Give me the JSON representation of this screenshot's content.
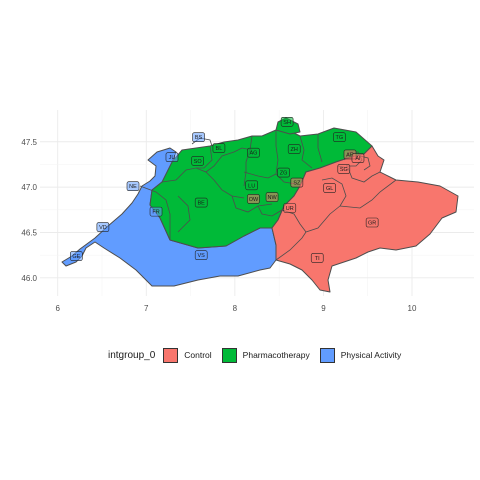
{
  "chart_data": {
    "type": "choropleth-map",
    "title": "",
    "xlabel": "",
    "ylabel": "",
    "xlim": [
      5.8,
      10.7
    ],
    "ylim": [
      45.8,
      47.85
    ],
    "x_ticks": [
      6,
      7,
      8,
      9,
      10
    ],
    "y_ticks": [
      46.0,
      46.5,
      47.0,
      47.5
    ],
    "x_tick_labels": [
      "6",
      "7",
      "8",
      "9",
      "10"
    ],
    "y_tick_labels": [
      "46.0",
      "46.5",
      "47.0",
      "47.5"
    ],
    "grid": true,
    "legend": {
      "title": "intgroup_0",
      "placement": "bottom",
      "items": [
        {
          "label": "Control",
          "color": "#F8766D"
        },
        {
          "label": "Pharmacotherapy",
          "color": "#00BA38"
        },
        {
          "label": "Physical Activity",
          "color": "#619CFF"
        }
      ]
    },
    "regions": [
      {
        "code": "GE",
        "group": "Physical Activity",
        "label_lon": 6.21,
        "label_lat": 46.24
      },
      {
        "code": "VD",
        "group": "Physical Activity",
        "label_lon": 6.51,
        "label_lat": 46.56
      },
      {
        "code": "VS",
        "group": "Physical Activity",
        "label_lon": 7.62,
        "label_lat": 46.25
      },
      {
        "code": "NE",
        "group": "Physical Activity",
        "label_lon": 6.85,
        "label_lat": 47.01
      },
      {
        "code": "FR",
        "group": "Physical Activity",
        "label_lon": 7.11,
        "label_lat": 46.73
      },
      {
        "code": "JU",
        "group": "Physical Activity",
        "label_lon": 7.29,
        "label_lat": 47.33
      },
      {
        "code": "BE",
        "group": "Pharmacotherapy",
        "label_lon": 7.62,
        "label_lat": 46.83
      },
      {
        "code": "SO",
        "group": "Pharmacotherapy",
        "label_lon": 7.58,
        "label_lat": 47.29
      },
      {
        "code": "BS",
        "group": "Physical Activity",
        "label_lon": 7.59,
        "label_lat": 47.55
      },
      {
        "code": "BL",
        "group": "Pharmacotherapy",
        "label_lon": 7.82,
        "label_lat": 47.43
      },
      {
        "code": "AG",
        "group": "Pharmacotherapy",
        "label_lon": 8.21,
        "label_lat": 47.38
      },
      {
        "code": "LU",
        "group": "Pharmacotherapy",
        "label_lon": 8.19,
        "label_lat": 47.02
      },
      {
        "code": "OW",
        "group": "Control",
        "label_lon": 8.21,
        "label_lat": 46.87
      },
      {
        "code": "NW",
        "group": "Control",
        "label_lon": 8.42,
        "label_lat": 46.89
      },
      {
        "code": "UR",
        "group": "Control",
        "label_lon": 8.62,
        "label_lat": 46.77
      },
      {
        "code": "SZ",
        "group": "Control",
        "label_lon": 8.7,
        "label_lat": 47.05
      },
      {
        "code": "ZG",
        "group": "Pharmacotherapy",
        "label_lon": 8.55,
        "label_lat": 47.16
      },
      {
        "code": "ZH",
        "group": "Pharmacotherapy",
        "label_lon": 8.67,
        "label_lat": 47.42
      },
      {
        "code": "SH",
        "group": "Pharmacotherapy",
        "label_lon": 8.59,
        "label_lat": 47.72
      },
      {
        "code": "TG",
        "group": "Pharmacotherapy",
        "label_lon": 9.18,
        "label_lat": 47.55
      },
      {
        "code": "AR",
        "group": "Control",
        "label_lon": 9.3,
        "label_lat": 47.36
      },
      {
        "code": "AI",
        "group": "Control",
        "label_lon": 9.39,
        "label_lat": 47.32
      },
      {
        "code": "SG",
        "group": "Control",
        "label_lon": 9.23,
        "label_lat": 47.2
      },
      {
        "code": "GL",
        "group": "Control",
        "label_lon": 9.07,
        "label_lat": 46.99
      },
      {
        "code": "TI",
        "group": "Control",
        "label_lon": 8.93,
        "label_lat": 46.22
      },
      {
        "code": "GR",
        "group": "Control",
        "label_lon": 9.55,
        "label_lat": 46.61
      }
    ]
  }
}
